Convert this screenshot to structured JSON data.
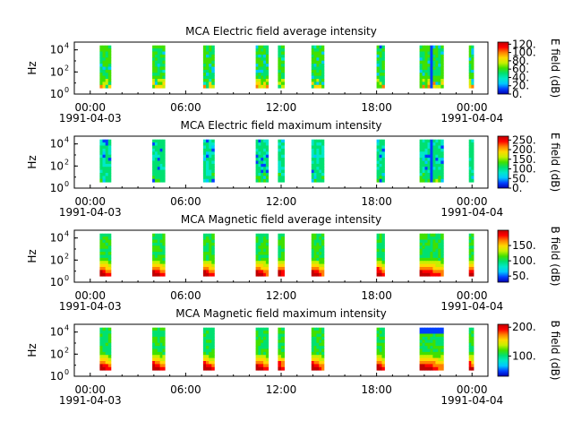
{
  "chart_data": [
    {
      "type": "heatmap",
      "title": "MCA  Electric field average intensity",
      "ylabel": "Hz",
      "colorbar_label": "E field (dB)",
      "colorbar_range": [
        0,
        125
      ],
      "colorbar_ticks": [
        "120.",
        "100.",
        "80.",
        "60.",
        "40.",
        "20.",
        "0."
      ],
      "colorbar_tick_values": [
        120,
        100,
        80,
        60,
        40,
        20,
        0
      ],
      "yscale": "log",
      "ylim_log10": [
        0,
        4.7
      ],
      "ytick_labels": [
        {
          "base": "10",
          "exp": "0",
          "log": 0
        },
        {
          "base": "10",
          "exp": "2",
          "log": 2
        },
        {
          "base": "10",
          "exp": "4",
          "log": 4
        }
      ],
      "xlim_hours": [
        -1,
        25
      ],
      "xtick_labels": [
        {
          "t": "00:00",
          "d": "1991-04-03",
          "h": 0
        },
        {
          "t": "06:00",
          "d": "",
          "h": 6
        },
        {
          "t": "12:00",
          "d": "",
          "h": 12
        },
        {
          "t": "18:00",
          "d": "",
          "h": 18
        },
        {
          "t": "00:00",
          "d": "1991-04-04",
          "h": 24
        }
      ]
    },
    {
      "type": "heatmap",
      "title": "MCA  Electric field maximum intensity",
      "ylabel": "Hz",
      "colorbar_label": "E field (dB)",
      "colorbar_range": [
        0,
        270
      ],
      "colorbar_ticks": [
        "250.",
        "200.",
        "150.",
        "100.",
        "50.",
        "0."
      ],
      "colorbar_tick_values": [
        250,
        200,
        150,
        100,
        50,
        0
      ],
      "yscale": "log",
      "ylim_log10": [
        0,
        4.7
      ],
      "ytick_labels": [
        {
          "base": "10",
          "exp": "0",
          "log": 0
        },
        {
          "base": "10",
          "exp": "2",
          "log": 2
        },
        {
          "base": "10",
          "exp": "4",
          "log": 4
        }
      ],
      "xlim_hours": [
        -1,
        25
      ],
      "xtick_labels": [
        {
          "t": "00:00",
          "d": "1991-04-03",
          "h": 0
        },
        {
          "t": "06:00",
          "d": "",
          "h": 6
        },
        {
          "t": "12:00",
          "d": "",
          "h": 12
        },
        {
          "t": "18:00",
          "d": "",
          "h": 18
        },
        {
          "t": "00:00",
          "d": "1991-04-04",
          "h": 24
        }
      ]
    },
    {
      "type": "heatmap",
      "title": "MCA  Magnetic field average intensity",
      "ylabel": "Hz",
      "colorbar_label": "B field (dB)",
      "colorbar_range": [
        30,
        200
      ],
      "colorbar_ticks": [
        "150.",
        "100.",
        "50."
      ],
      "colorbar_tick_values": [
        150,
        100,
        50
      ],
      "yscale": "log",
      "ylim_log10": [
        0,
        4.7
      ],
      "ytick_labels": [
        {
          "base": "10",
          "exp": "0",
          "log": 0
        },
        {
          "base": "10",
          "exp": "2",
          "log": 2
        },
        {
          "base": "10",
          "exp": "4",
          "log": 4
        }
      ],
      "xlim_hours": [
        -1,
        25
      ],
      "xtick_labels": [
        {
          "t": "00:00",
          "d": "1991-04-03",
          "h": 0
        },
        {
          "t": "06:00",
          "d": "",
          "h": 6
        },
        {
          "t": "12:00",
          "d": "",
          "h": 12
        },
        {
          "t": "18:00",
          "d": "",
          "h": 18
        },
        {
          "t": "00:00",
          "d": "1991-04-04",
          "h": 24
        }
      ]
    },
    {
      "type": "heatmap",
      "title": "MCA  Magnetic field maximum intensity",
      "ylabel": "Hz",
      "colorbar_label": "B field (dB)",
      "colorbar_range": [
        30,
        210
      ],
      "colorbar_ticks": [
        "200.",
        "100."
      ],
      "colorbar_tick_values": [
        200,
        100
      ],
      "yscale": "log",
      "ylim_log10": [
        0,
        4.7
      ],
      "ytick_labels": [
        {
          "base": "10",
          "exp": "0",
          "log": 0
        },
        {
          "base": "10",
          "exp": "2",
          "log": 2
        },
        {
          "base": "10",
          "exp": "4",
          "log": 4
        }
      ],
      "xlim_hours": [
        -1,
        25
      ],
      "xtick_labels": [
        {
          "t": "00:00",
          "d": "1991-04-03",
          "h": 0
        },
        {
          "t": "06:00",
          "d": "",
          "h": 6
        },
        {
          "t": "12:00",
          "d": "",
          "h": 12
        },
        {
          "t": "18:00",
          "d": "",
          "h": 18
        },
        {
          "t": "00:00",
          "d": "1991-04-04",
          "h": 24
        }
      ]
    }
  ],
  "data_intervals_hours": [
    [
      0.6,
      1.3
    ],
    [
      3.9,
      4.7
    ],
    [
      7.1,
      7.8
    ],
    [
      10.4,
      11.2
    ],
    [
      11.8,
      12.2
    ],
    [
      13.9,
      14.7
    ],
    [
      18.0,
      18.5
    ],
    [
      20.7,
      22.2
    ],
    [
      23.8,
      24.1
    ]
  ],
  "colormap": [
    "#0000b0",
    "#0040ff",
    "#00c8ff",
    "#00e8c8",
    "#00e070",
    "#40e000",
    "#c8f000",
    "#ffd800",
    "#ff8000",
    "#ff0000",
    "#c00000"
  ]
}
